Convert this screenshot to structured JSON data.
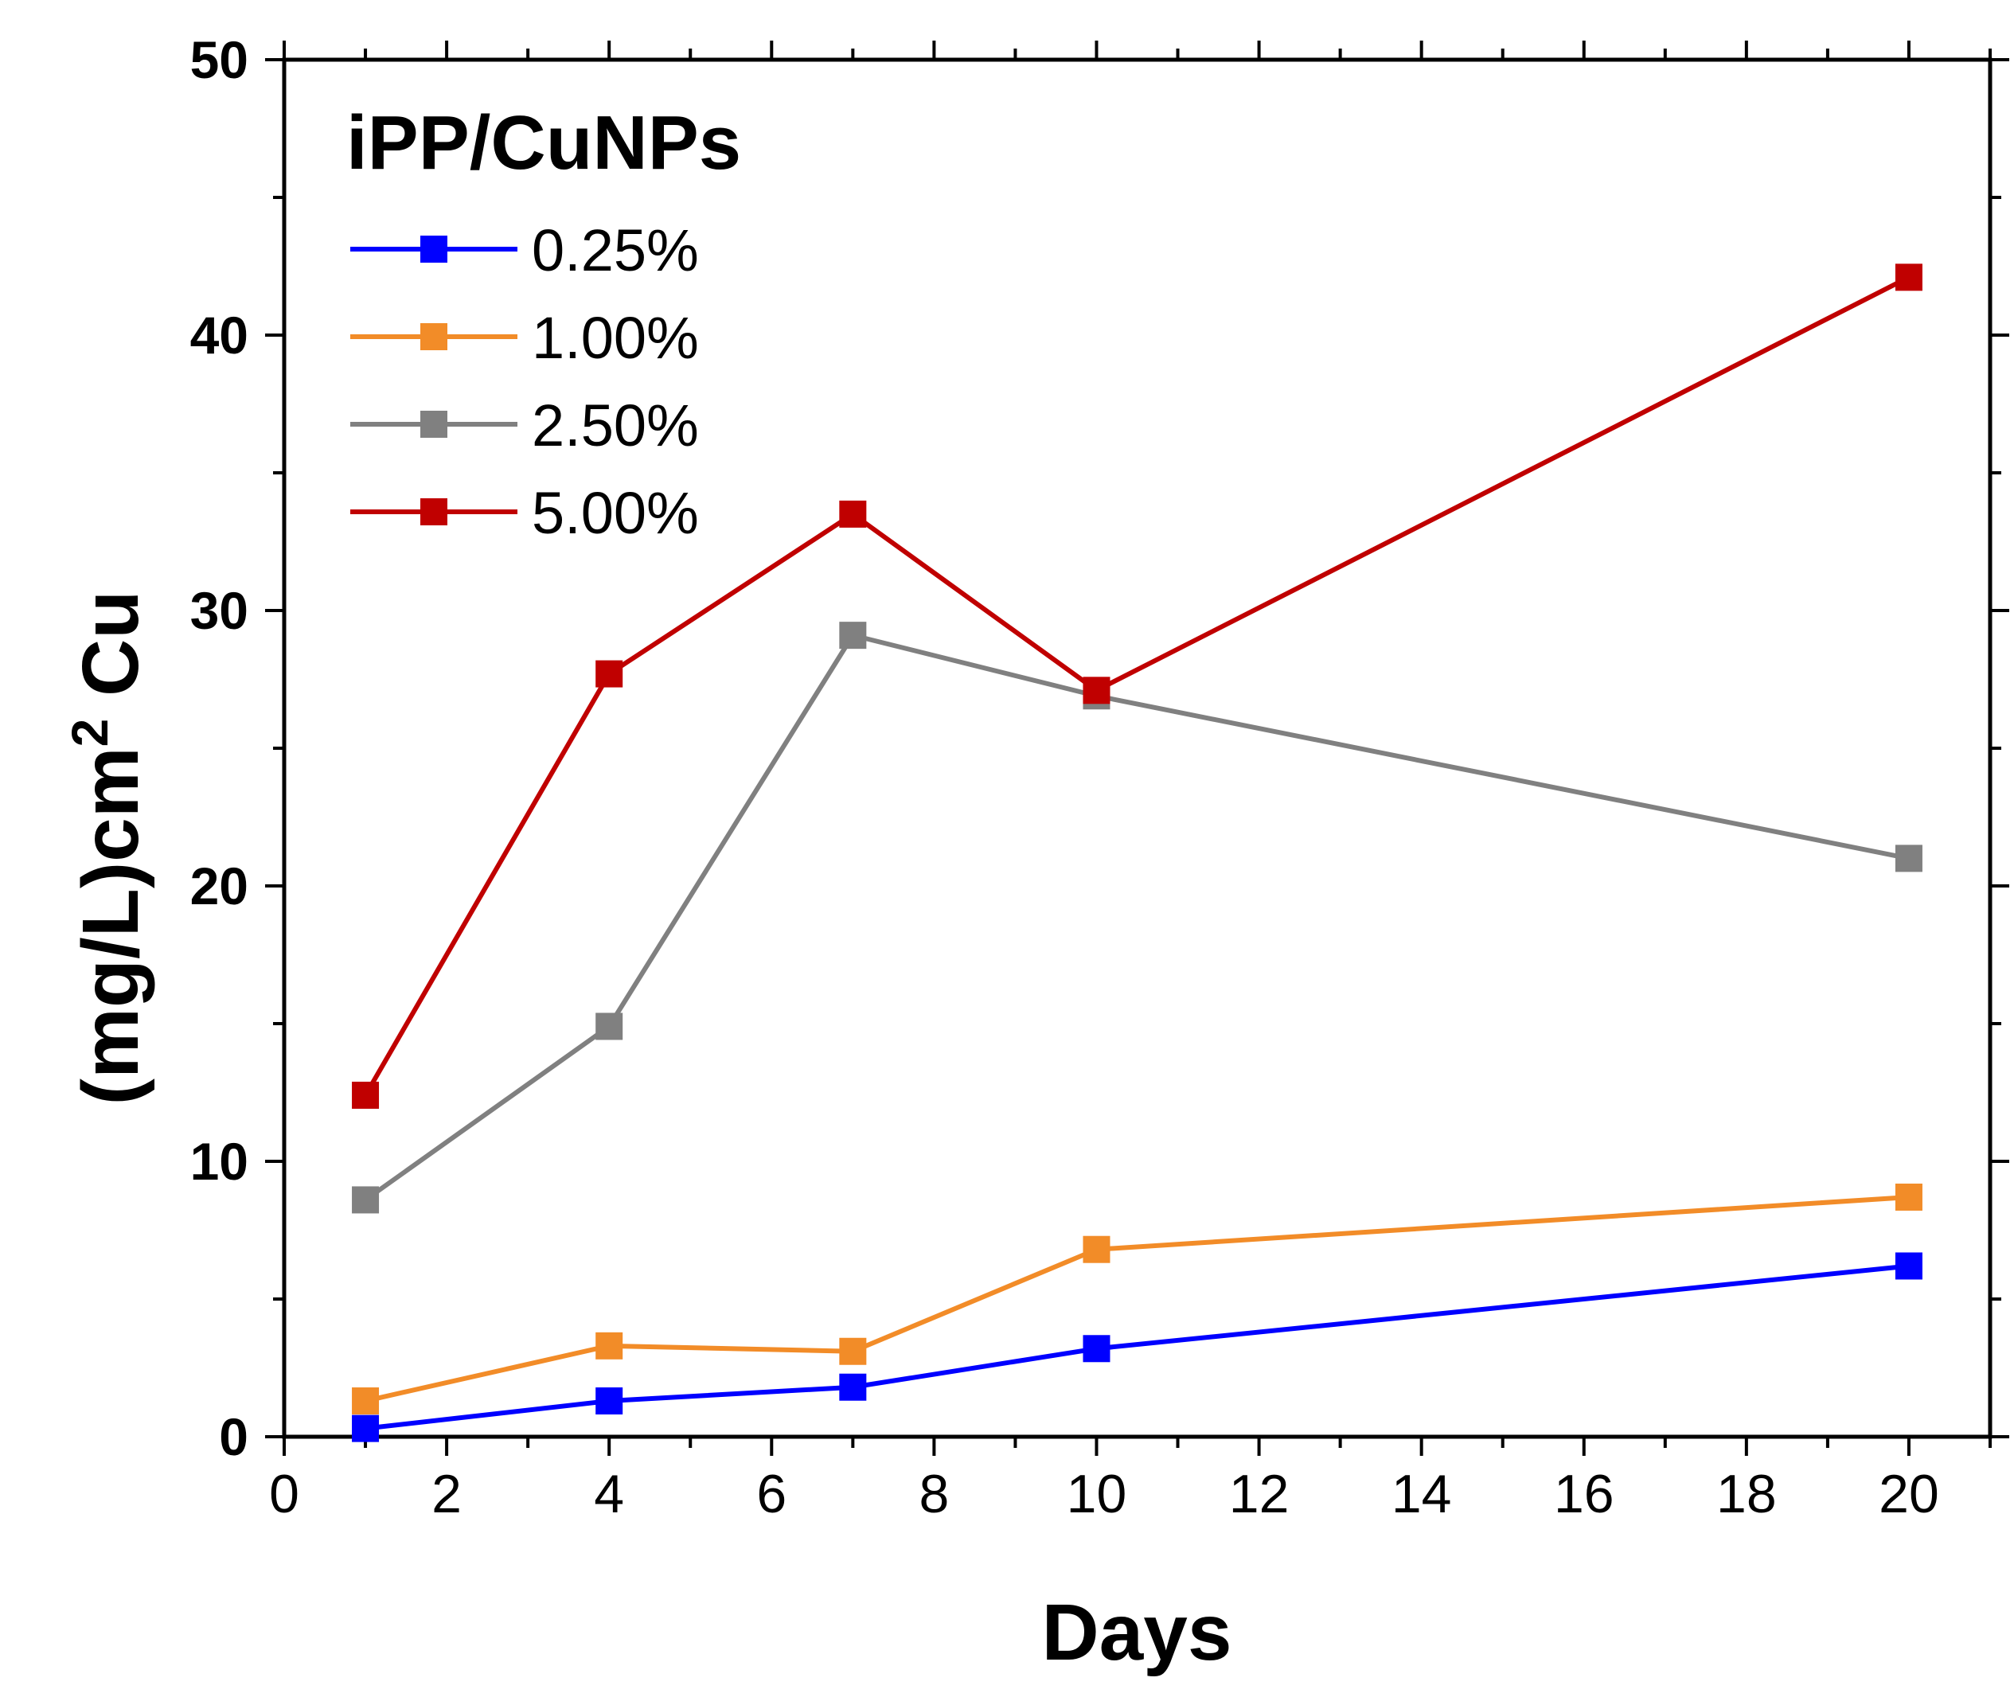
{
  "chart_data": {
    "type": "line",
    "title": "",
    "xlabel": "Days",
    "ylabel_main": "(mg/L)cm",
    "ylabel_sup": "2",
    "ylabel_tail": " Cu",
    "xlim": [
      0,
      21
    ],
    "ylim": [
      0,
      50
    ],
    "xticks": [
      0,
      2,
      4,
      6,
      8,
      10,
      12,
      14,
      16,
      18,
      20
    ],
    "yticks": [
      0,
      10,
      20,
      30,
      40,
      50
    ],
    "grid": false,
    "legend": {
      "title": "iPP/CuNPs",
      "position": "top-left"
    },
    "x": [
      1,
      4,
      7,
      10,
      20
    ],
    "series": [
      {
        "name": "0.25%",
        "color": "#0000ff",
        "values": [
          0.3,
          1.3,
          1.8,
          3.2,
          6.2
        ]
      },
      {
        "name": "1.00%",
        "color": "#f28c28",
        "values": [
          1.3,
          3.3,
          3.1,
          6.8,
          8.7
        ]
      },
      {
        "name": "2.50%",
        "color": "#808080",
        "values": [
          8.6,
          14.9,
          29.1,
          26.9,
          21.0
        ]
      },
      {
        "name": "5.00%",
        "color": "#c00000",
        "values": [
          12.4,
          27.7,
          33.5,
          27.1,
          42.1
        ]
      }
    ]
  }
}
